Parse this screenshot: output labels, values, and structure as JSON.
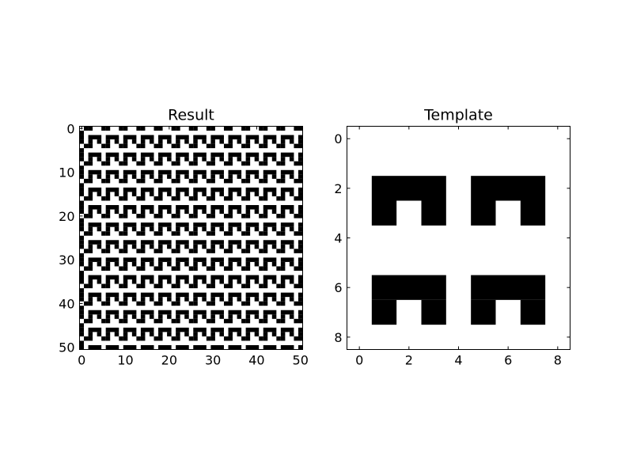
{
  "chart_data": [
    {
      "type": "heatmap",
      "title": "Result",
      "colormap": "gray_r",
      "xlabel": "",
      "ylabel": "",
      "xlim": [
        -0.5,
        50.5
      ],
      "ylim": [
        50.5,
        -0.5
      ],
      "xticks": [
        0,
        10,
        20,
        30,
        40,
        50
      ],
      "yticks": [
        0,
        10,
        20,
        30,
        40,
        50
      ],
      "shape": [
        51,
        51
      ],
      "pattern": "template tiled with period 4 rows x 4 cols",
      "black_row_segments": [
        [
          [
            1,
            1
          ],
          [
            2,
            2
          ],
          [
            5,
            5
          ],
          [
            6,
            6
          ],
          [
            9,
            9
          ],
          [
            10,
            10
          ],
          [
            13,
            13
          ],
          [
            14,
            14
          ],
          [
            17,
            17
          ],
          [
            18,
            18
          ],
          [
            21,
            21
          ],
          [
            22,
            22
          ],
          [
            25,
            25
          ],
          [
            26,
            26
          ],
          [
            29,
            29
          ],
          [
            30,
            30
          ],
          [
            33,
            33
          ],
          [
            34,
            34
          ],
          [
            37,
            37
          ],
          [
            38,
            38
          ],
          [
            41,
            41
          ],
          [
            42,
            42
          ],
          [
            45,
            45
          ],
          [
            46,
            46
          ],
          [
            49,
            49
          ],
          [
            50,
            50
          ]
        ],
        [
          [
            0,
            0
          ]
        ],
        [
          [
            0,
            0
          ],
          [
            2,
            4
          ],
          [
            6,
            8
          ],
          [
            10,
            12
          ],
          [
            14,
            16
          ],
          [
            18,
            20
          ],
          [
            22,
            24
          ],
          [
            26,
            28
          ],
          [
            30,
            32
          ],
          [
            34,
            36
          ],
          [
            38,
            40
          ],
          [
            42,
            44
          ],
          [
            46,
            48
          ],
          [
            50,
            50
          ]
        ],
        [
          [
            0,
            0
          ],
          [
            2,
            2
          ],
          [
            4,
            4
          ],
          [
            6,
            6
          ],
          [
            8,
            8
          ],
          [
            10,
            10
          ],
          [
            12,
            12
          ],
          [
            14,
            14
          ],
          [
            16,
            16
          ],
          [
            18,
            18
          ],
          [
            20,
            20
          ],
          [
            22,
            22
          ],
          [
            24,
            24
          ],
          [
            26,
            26
          ],
          [
            28,
            28
          ],
          [
            30,
            30
          ],
          [
            32,
            32
          ],
          [
            34,
            34
          ],
          [
            36,
            36
          ],
          [
            38,
            38
          ],
          [
            40,
            40
          ],
          [
            42,
            42
          ],
          [
            44,
            44
          ],
          [
            46,
            46
          ],
          [
            48,
            48
          ],
          [
            50,
            50
          ]
        ]
      ]
    },
    {
      "type": "heatmap",
      "title": "Template",
      "colormap": "gray_r",
      "xlabel": "",
      "ylabel": "",
      "xlim": [
        -0.5,
        8.5
      ],
      "ylim": [
        8.5,
        -0.5
      ],
      "xticks": [
        0,
        2,
        4,
        6,
        8
      ],
      "yticks": [
        0,
        2,
        4,
        6,
        8
      ],
      "shape": [
        9,
        9
      ],
      "cells": [
        [
          0,
          0,
          0,
          0,
          0,
          0,
          0,
          0,
          0
        ],
        [
          0,
          0,
          0,
          0,
          0,
          0,
          0,
          0,
          0
        ],
        [
          0,
          1,
          1,
          1,
          0,
          1,
          1,
          1,
          0
        ],
        [
          0,
          1,
          0,
          1,
          0,
          1,
          0,
          1,
          0
        ],
        [
          0,
          0,
          0,
          0,
          0,
          0,
          0,
          0,
          0
        ],
        [
          0,
          0,
          0,
          0,
          0,
          0,
          0,
          0,
          0
        ],
        [
          0,
          1,
          1,
          1,
          0,
          1,
          1,
          1,
          0
        ],
        [
          0,
          1,
          0,
          1,
          0,
          1,
          0,
          1,
          0
        ],
        [
          0,
          0,
          0,
          0,
          0,
          0,
          0,
          0,
          0
        ]
      ]
    }
  ]
}
